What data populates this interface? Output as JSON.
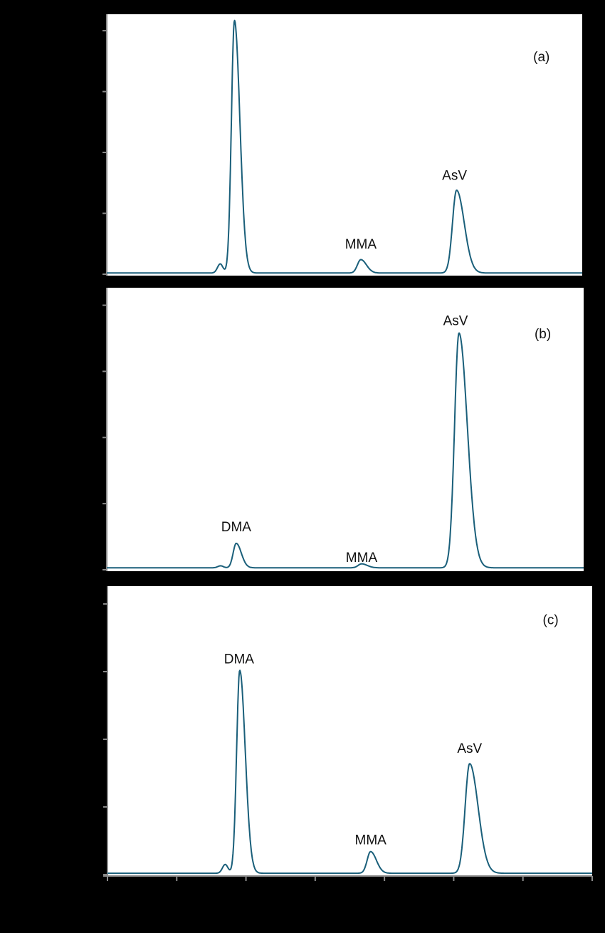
{
  "figure": {
    "background": "#000000",
    "plot_background": "#ffffff",
    "line_color": "#1a5f7a",
    "axis_color": "#8a8a8a"
  },
  "chart_data": [
    {
      "type": "line",
      "panel_label": "(a)",
      "title": "",
      "xlabel": "",
      "ylabel": "",
      "xlim": [
        0,
        7
      ],
      "ylim": [
        0,
        4.2
      ],
      "grid": false,
      "x_ticks": [
        0,
        1,
        2,
        3,
        4,
        5,
        6,
        7
      ],
      "y_ticks": [
        0,
        1,
        2,
        3,
        4
      ],
      "baseline": 0.02,
      "peaks": [
        {
          "label": "",
          "x": 1.67,
          "height": 0.15,
          "width": 0.04
        },
        {
          "label": "",
          "x": 1.88,
          "height": 4.15,
          "width": 0.045,
          "tail": 0.35
        },
        {
          "label": "MMA",
          "x": 3.74,
          "height": 0.22,
          "width": 0.05,
          "tail": 0.3
        },
        {
          "label": "AsV",
          "x": 5.15,
          "height": 1.36,
          "width": 0.06,
          "tail": 0.4
        }
      ],
      "annotations": [
        {
          "text": "MMA",
          "x": 3.74,
          "y": 0.42
        },
        {
          "text": "AsV",
          "x": 5.12,
          "y": 1.55
        },
        {
          "text": "(a)",
          "x": 6.4,
          "y": 3.5
        }
      ]
    },
    {
      "type": "line",
      "panel_label": "(b)",
      "title": "",
      "xlabel": "",
      "ylabel": "",
      "xlim": [
        0,
        7
      ],
      "ylim": [
        0,
        4.2
      ],
      "grid": false,
      "x_ticks": [
        0,
        1,
        2,
        3,
        4,
        5,
        6,
        7
      ],
      "y_ticks": [
        0,
        1,
        2,
        3,
        4
      ],
      "baseline": 0.03,
      "peaks": [
        {
          "label": "",
          "x": 1.67,
          "height": 0.03,
          "width": 0.04
        },
        {
          "label": "DMA",
          "x": 1.9,
          "height": 0.37,
          "width": 0.045,
          "tail": 0.3
        },
        {
          "label": "MMA",
          "x": 3.74,
          "height": 0.06,
          "width": 0.05,
          "tail": 0.3
        },
        {
          "label": "AsV",
          "x": 5.17,
          "height": 3.55,
          "width": 0.065,
          "tail": 0.4
        }
      ],
      "annotations": [
        {
          "text": "DMA",
          "x": 1.9,
          "y": 0.58
        },
        {
          "text": "MMA",
          "x": 3.74,
          "y": 0.12
        },
        {
          "text": "AsV",
          "x": 5.12,
          "y": 3.7
        },
        {
          "text": "(b)",
          "x": 6.4,
          "y": 3.5
        }
      ]
    },
    {
      "type": "line",
      "panel_label": "(c)",
      "title": "",
      "xlabel": "",
      "ylabel": "",
      "xlim": [
        0,
        7
      ],
      "ylim": [
        0,
        4.2
      ],
      "grid": false,
      "x_ticks": [
        0,
        1,
        2,
        3,
        4,
        5,
        6,
        7
      ],
      "y_ticks": [
        0,
        1,
        2,
        3,
        4
      ],
      "baseline": 0.02,
      "peaks": [
        {
          "label": "",
          "x": 1.7,
          "height": 0.13,
          "width": 0.04
        },
        {
          "label": "DMA",
          "x": 1.91,
          "height": 3.0,
          "width": 0.045,
          "tail": 0.35
        },
        {
          "label": "MMA",
          "x": 3.8,
          "height": 0.32,
          "width": 0.05,
          "tail": 0.3
        },
        {
          "label": "AsV",
          "x": 5.23,
          "height": 1.62,
          "width": 0.065,
          "tail": 0.4
        }
      ],
      "annotations": [
        {
          "text": "DMA",
          "x": 1.9,
          "y": 3.12
        },
        {
          "text": "MMA",
          "x": 3.8,
          "y": 0.45
        },
        {
          "text": "AsV",
          "x": 5.23,
          "y": 1.8
        },
        {
          "text": "(c)",
          "x": 6.4,
          "y": 3.7
        }
      ]
    }
  ]
}
